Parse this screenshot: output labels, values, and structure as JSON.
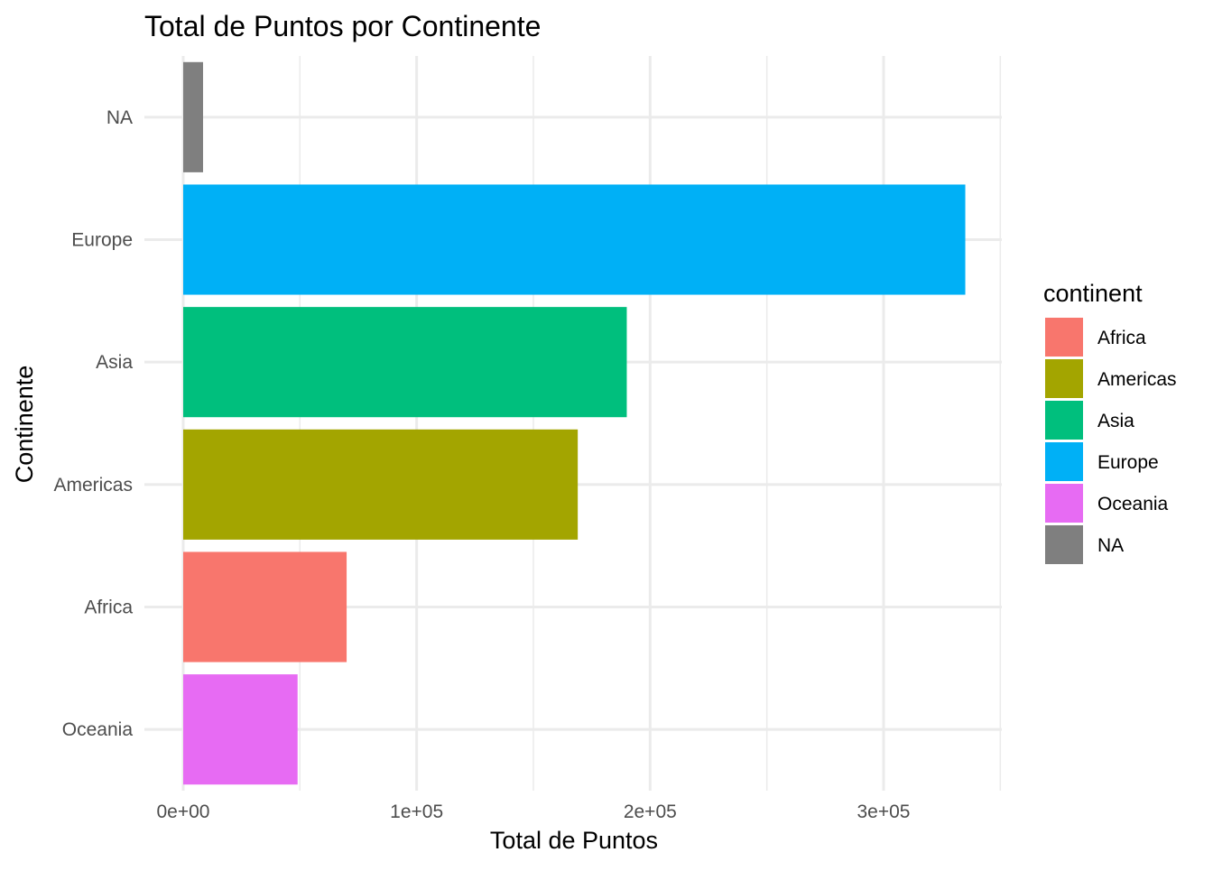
{
  "chart_data": {
    "type": "bar",
    "orientation": "horizontal",
    "title": "Total de Puntos por Continente",
    "xlabel": "Total de Puntos",
    "ylabel": "Continente",
    "categories": [
      "Oceania",
      "Africa",
      "Americas",
      "Asia",
      "Europe",
      "NA"
    ],
    "values": [
      49000,
      70000,
      169000,
      190000,
      335000,
      8500
    ],
    "xlim": [
      0,
      350000
    ],
    "x_ticks": [
      0,
      100000,
      200000,
      300000
    ],
    "x_tick_labels": [
      "0e+00",
      "1e+05",
      "2e+05",
      "3e+05"
    ],
    "grid": true,
    "legend": {
      "title": "continent",
      "position": "right",
      "items": [
        {
          "label": "Africa",
          "color": "#F8766D"
        },
        {
          "label": "Americas",
          "color": "#A3A500"
        },
        {
          "label": "Asia",
          "color": "#00BF7D"
        },
        {
          "label": "Europe",
          "color": "#00B0F6"
        },
        {
          "label": "Oceania",
          "color": "#E76BF3"
        },
        {
          "label": "NA",
          "color": "#7F7F7F"
        }
      ]
    },
    "bar_colors": {
      "Oceania": "#E76BF3",
      "Africa": "#F8766D",
      "Americas": "#A3A500",
      "Asia": "#00BF7D",
      "Europe": "#00B0F6",
      "NA": "#7F7F7F"
    }
  }
}
